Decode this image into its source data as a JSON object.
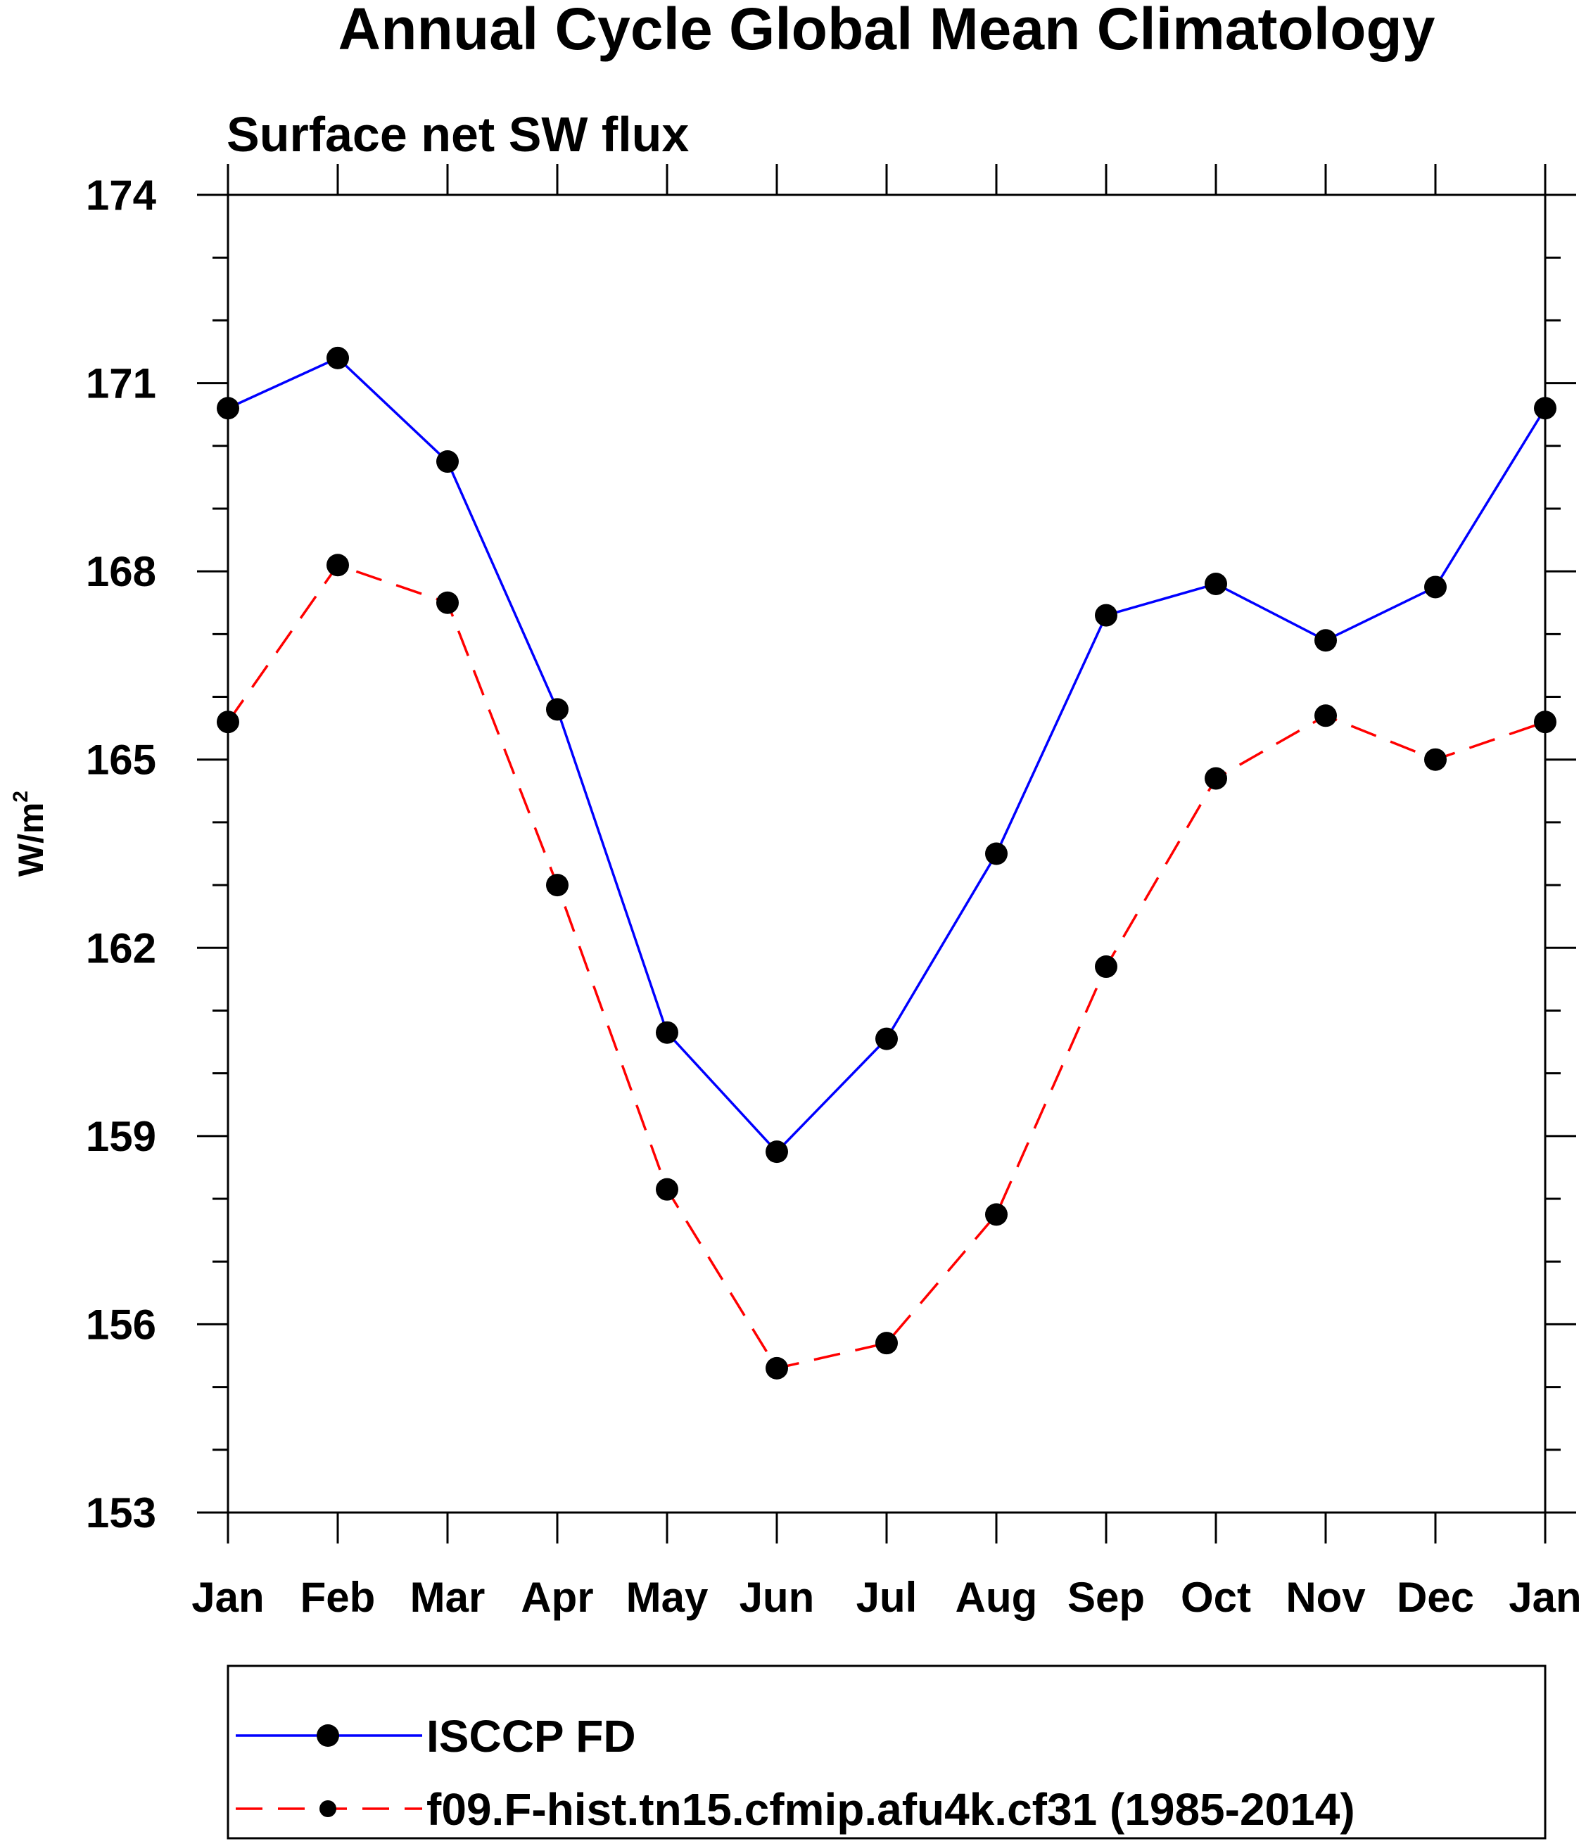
{
  "chart_data": {
    "type": "line",
    "title": "Annual Cycle Global Mean Climatology",
    "subtitle": "Surface net SW flux",
    "ylabel": "W/m",
    "ylabel_superscript": "2",
    "categories": [
      "Jan",
      "Feb",
      "Mar",
      "Apr",
      "May",
      "Jun",
      "Jul",
      "Aug",
      "Sep",
      "Oct",
      "Nov",
      "Dec",
      "Jan"
    ],
    "y_ticks": [
      153,
      156,
      159,
      162,
      165,
      168,
      171,
      174
    ],
    "ylim": [
      153,
      174
    ],
    "y_minor_step": 1,
    "grid": false,
    "legend_position": "bottom",
    "series": [
      {
        "name": "ISCCP FD",
        "color": "#0000ff",
        "dash": "solid",
        "marker": "filled-circle",
        "values": [
          170.6,
          171.4,
          169.75,
          165.8,
          160.65,
          158.75,
          160.55,
          163.5,
          167.3,
          167.8,
          166.9,
          167.75,
          170.6
        ]
      },
      {
        "name": "f09.F-hist.tn15.cfmip.afu4k.cf31 (1985-2014)",
        "color": "#ff0000",
        "dash": "dashed",
        "marker": "filled-circle",
        "values": [
          165.6,
          168.1,
          167.5,
          163.0,
          158.15,
          155.3,
          155.7,
          157.75,
          161.7,
          164.7,
          165.7,
          165.0,
          165.6
        ]
      }
    ]
  }
}
